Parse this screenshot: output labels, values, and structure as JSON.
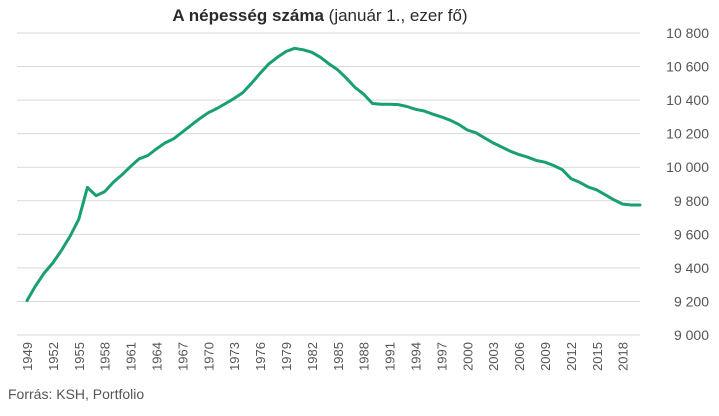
{
  "title": "A népesség száma",
  "subtitle": "(január 1., ezer fő)",
  "source": "Forrás: KSH, Portfolio",
  "colors": {
    "line": "#1a9e74",
    "grid": "#d9d9d9",
    "tick_text": "#555555"
  },
  "chart_data": {
    "type": "line",
    "title": "A népesség száma (január 1., ezer fő)",
    "xlabel": "",
    "ylabel": "",
    "xlim": [
      1949,
      2020
    ],
    "ylim": [
      9000,
      10800
    ],
    "y_ticks": [
      9000,
      9200,
      9400,
      9600,
      9800,
      10000,
      10200,
      10400,
      10600,
      10800
    ],
    "y_tick_labels": [
      "9 000",
      "9 200",
      "9 400",
      "9 600",
      "9 800",
      "10 000",
      "10 200",
      "10 400",
      "10 600",
      "10 800"
    ],
    "y_axis_side": "right",
    "x_ticks": [
      1949,
      1952,
      1955,
      1958,
      1961,
      1964,
      1967,
      1970,
      1973,
      1976,
      1979,
      1982,
      1985,
      1988,
      1991,
      1994,
      1997,
      2000,
      2003,
      2006,
      2009,
      2012,
      2015,
      2018
    ],
    "x_tick_labels": [
      "1949",
      "1952",
      "1955",
      "1958",
      "1961",
      "1964",
      "1967",
      "1970",
      "1973",
      "1976",
      "1979",
      "1982",
      "1985",
      "1988",
      "1991",
      "1994",
      "1997",
      "2000",
      "2003",
      "2006",
      "2009",
      "2012",
      "2015",
      "2018"
    ],
    "x_tick_rotation": "vertical",
    "grid": "horizontal",
    "legend": "none",
    "series": [
      {
        "x": [
          1949,
          1950,
          1951,
          1952,
          1953,
          1954,
          1955,
          1956,
          1957,
          1958,
          1959,
          1960,
          1961,
          1962,
          1963,
          1964,
          1965,
          1966,
          1967,
          1968,
          1969,
          1970,
          1971,
          1972,
          1973,
          1974,
          1975,
          1976,
          1977,
          1978,
          1979,
          1980,
          1981,
          1982,
          1983,
          1984,
          1985,
          1986,
          1987,
          1988,
          1989,
          1990,
          1991,
          1992,
          1993,
          1994,
          1995,
          1996,
          1997,
          1998,
          1999,
          2000,
          2001,
          2002,
          2003,
          2004,
          2005,
          2006,
          2007,
          2008,
          2009,
          2010,
          2011,
          2012,
          2013,
          2014,
          2015,
          2016,
          2017,
          2018,
          2019,
          2020
        ],
        "y": [
          9205,
          9293,
          9370,
          9430,
          9505,
          9590,
          9690,
          9880,
          9830,
          9855,
          9910,
          9955,
          10005,
          10050,
          10070,
          10110,
          10145,
          10170,
          10210,
          10250,
          10290,
          10325,
          10350,
          10380,
          10410,
          10445,
          10500,
          10560,
          10615,
          10655,
          10690,
          10709,
          10700,
          10685,
          10655,
          10615,
          10580,
          10530,
          10475,
          10435,
          10380,
          10375,
          10375,
          10373,
          10362,
          10345,
          10335,
          10316,
          10300,
          10280,
          10255,
          10222,
          10205,
          10175,
          10145,
          10120,
          10095,
          10075,
          10060,
          10040,
          10030,
          10010,
          9985,
          9932,
          9910,
          9882,
          9865,
          9835,
          9805,
          9780,
          9775,
          9775
        ]
      }
    ]
  }
}
